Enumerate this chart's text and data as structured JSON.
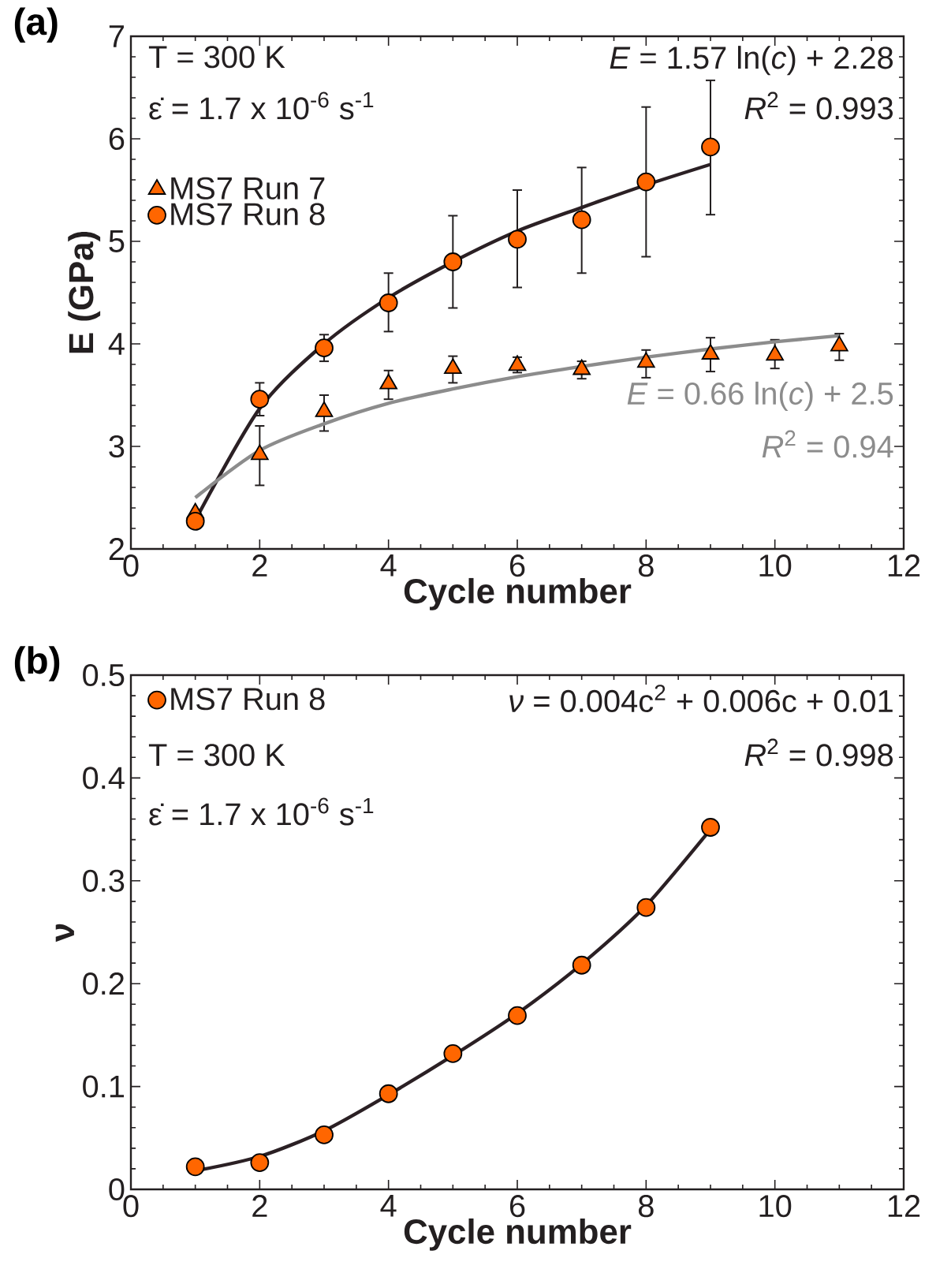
{
  "chart_data": [
    {
      "type": "scatter",
      "xlabel": "Cycle number",
      "ylabel": "E (GPa)",
      "xlim": [
        0,
        12
      ],
      "ylim": [
        2,
        7
      ],
      "xticks": [
        0,
        2,
        4,
        6,
        8,
        10,
        12
      ],
      "yticks": [
        2,
        3,
        4,
        5,
        6,
        7
      ],
      "legend": "top left",
      "series": [
        {
          "name": "MS7 Run 7",
          "type": "scatter",
          "marker": "triangle",
          "color": "#ff6600",
          "x": [
            1,
            2,
            3,
            4,
            5,
            6,
            7,
            8,
            9,
            10,
            11
          ],
          "values": [
            2.35,
            2.92,
            3.34,
            3.61,
            3.76,
            3.79,
            3.75,
            3.82,
            3.9,
            3.89,
            3.98
          ],
          "errors": [
            null,
            [
              2.62,
              3.2
            ],
            [
              3.15,
              3.5
            ],
            [
              3.46,
              3.74
            ],
            [
              3.62,
              3.88
            ],
            [
              3.72,
              3.87
            ],
            [
              3.66,
              3.83
            ],
            [
              3.67,
              3.94
            ],
            [
              3.73,
              4.06
            ],
            [
              3.76,
              4.04
            ],
            [
              3.84,
              4.1
            ]
          ]
        },
        {
          "name": "MS7 Run 8",
          "type": "scatter",
          "marker": "circle",
          "color": "#ff6600",
          "x": [
            1,
            2,
            3,
            4,
            5,
            6,
            7,
            8,
            9
          ],
          "values": [
            2.27,
            3.46,
            3.96,
            4.4,
            4.8,
            5.02,
            5.21,
            5.58,
            5.92
          ],
          "errors": [
            null,
            [
              3.3,
              3.62
            ],
            [
              3.83,
              4.09
            ],
            [
              4.12,
              4.69
            ],
            [
              4.35,
              5.25
            ],
            [
              4.55,
              5.5
            ],
            [
              4.69,
              5.72
            ],
            [
              4.85,
              6.31
            ],
            [
              5.26,
              6.57
            ]
          ]
        },
        {
          "type": "line",
          "color": "#2b2024",
          "x": [
            1,
            2,
            3,
            4,
            5,
            6,
            7,
            8,
            9
          ],
          "values": [
            2.28,
            3.37,
            4.0,
            4.45,
            4.8,
            5.1,
            5.33,
            5.55,
            5.75
          ]
        },
        {
          "type": "line",
          "color": "#8c8c8c",
          "x": [
            1,
            2,
            3,
            4,
            5,
            6,
            7,
            8,
            9,
            10,
            11
          ],
          "values": [
            2.5,
            2.96,
            3.22,
            3.42,
            3.56,
            3.68,
            3.78,
            3.87,
            3.95,
            4.02,
            4.08
          ]
        }
      ],
      "annotations": [
        "(a)",
        "T = 300 K",
        "ε̇ = 1.7 x 10$^{-6}$ s$^{-1}$",
        "*E* = 1.57 ln(*c*) + 2.28",
        "*R*$^{2}$ = 0.993",
        "*E* = 0.66 ln(*c*) + 2.5",
        "*R*$^{2}$ = 0.94"
      ]
    },
    {
      "type": "scatter",
      "xlabel": "Cycle number",
      "ylabel": "ν",
      "xlim": [
        0,
        12
      ],
      "ylim": [
        0,
        0.5
      ],
      "xticks": [
        0,
        2,
        4,
        6,
        8,
        10,
        12
      ],
      "yticks": [
        0,
        0.1,
        0.2,
        0.3,
        0.4,
        0.5
      ],
      "legend": "top left",
      "series": [
        {
          "name": "MS7 Run 8",
          "type": "scatter",
          "marker": "circle",
          "color": "#ff6600",
          "x": [
            1,
            2,
            3,
            4,
            5,
            6,
            7,
            8,
            9
          ],
          "values": [
            0.022,
            0.026,
            0.053,
            0.093,
            0.132,
            0.169,
            0.218,
            0.274,
            0.352
          ]
        },
        {
          "type": "line",
          "color": "#2b2024",
          "x": [
            1,
            2,
            3,
            4,
            5,
            6,
            7,
            8,
            9
          ],
          "values": [
            0.018,
            0.032,
            0.057,
            0.092,
            0.13,
            0.171,
            0.219,
            0.276,
            0.35
          ]
        }
      ],
      "annotations": [
        "(b)",
        "*ν* = 0.004c$^{2}$ + 0.006c + 0.01",
        "*R*$^{2}$ = 0.998",
        "T = 300 K",
        "ε̇ = 1.7 x 10$^{-6}$ s$^{-1}$"
      ]
    }
  ]
}
